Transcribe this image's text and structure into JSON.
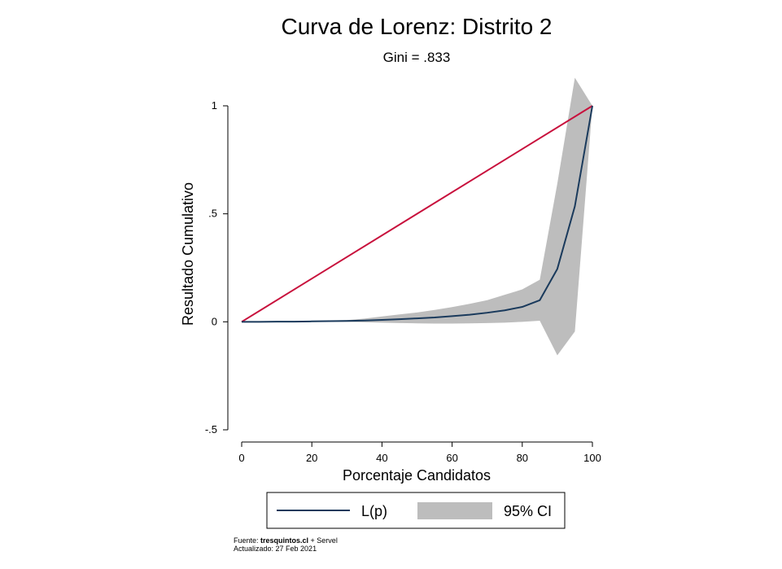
{
  "chart_data": {
    "type": "line",
    "title": "Curva de Lorenz: Distrito 2",
    "subtitle": "Gini = .833",
    "xlabel": "Porcentaje Candidatos",
    "ylabel": "Resultado Cumulativo",
    "xlim": [
      0,
      100
    ],
    "ylim": [
      -0.5,
      1
    ],
    "x_ticks": [
      0,
      20,
      40,
      60,
      80,
      100
    ],
    "x_tick_labels": [
      "0",
      "20",
      "40",
      "60",
      "80",
      "100"
    ],
    "y_ticks": [
      -0.5,
      0,
      0.5,
      1
    ],
    "y_tick_labels": [
      "-.5",
      "0",
      ".5",
      "1"
    ],
    "grid": false,
    "legend_position": "bottom",
    "series": [
      {
        "name": "L(p)",
        "type": "line",
        "color": "#1a3a5c",
        "x": [
          0,
          5,
          10,
          15,
          20,
          25,
          30,
          35,
          40,
          45,
          50,
          55,
          60,
          65,
          70,
          75,
          80,
          85,
          90,
          95,
          100
        ],
        "y": [
          0,
          0,
          0.001,
          0.001,
          0.002,
          0.003,
          0.004,
          0.006,
          0.009,
          0.012,
          0.016,
          0.02,
          0.026,
          0.033,
          0.042,
          0.053,
          0.069,
          0.1,
          0.245,
          0.535,
          1
        ]
      },
      {
        "name": "95% CI",
        "type": "area",
        "color": "#bdbdbd",
        "x": [
          0,
          5,
          10,
          15,
          20,
          25,
          30,
          35,
          40,
          45,
          50,
          55,
          60,
          65,
          70,
          75,
          80,
          85,
          90,
          95,
          100
        ],
        "lower": [
          0,
          0,
          0,
          0,
          0,
          0,
          0,
          -0.002,
          -0.004,
          -0.006,
          -0.007,
          -0.008,
          -0.008,
          -0.007,
          -0.006,
          -0.004,
          0,
          0.005,
          -0.155,
          -0.045,
          1
        ],
        "upper": [
          0,
          0,
          0.001,
          0.002,
          0.004,
          0.006,
          0.008,
          0.015,
          0.025,
          0.034,
          0.043,
          0.055,
          0.068,
          0.083,
          0.1,
          0.125,
          0.15,
          0.195,
          0.64,
          1.13,
          1
        ]
      },
      {
        "type": "line",
        "color": "#c8103c",
        "x": [
          0,
          100
        ],
        "y": [
          0,
          1
        ]
      }
    ]
  },
  "footer": {
    "source_prefix": "Fuente: ",
    "source_bold": "tresquintos.cl",
    "source_suffix": " + Servel",
    "updated": "Actualizado: 27 Feb 2021"
  }
}
